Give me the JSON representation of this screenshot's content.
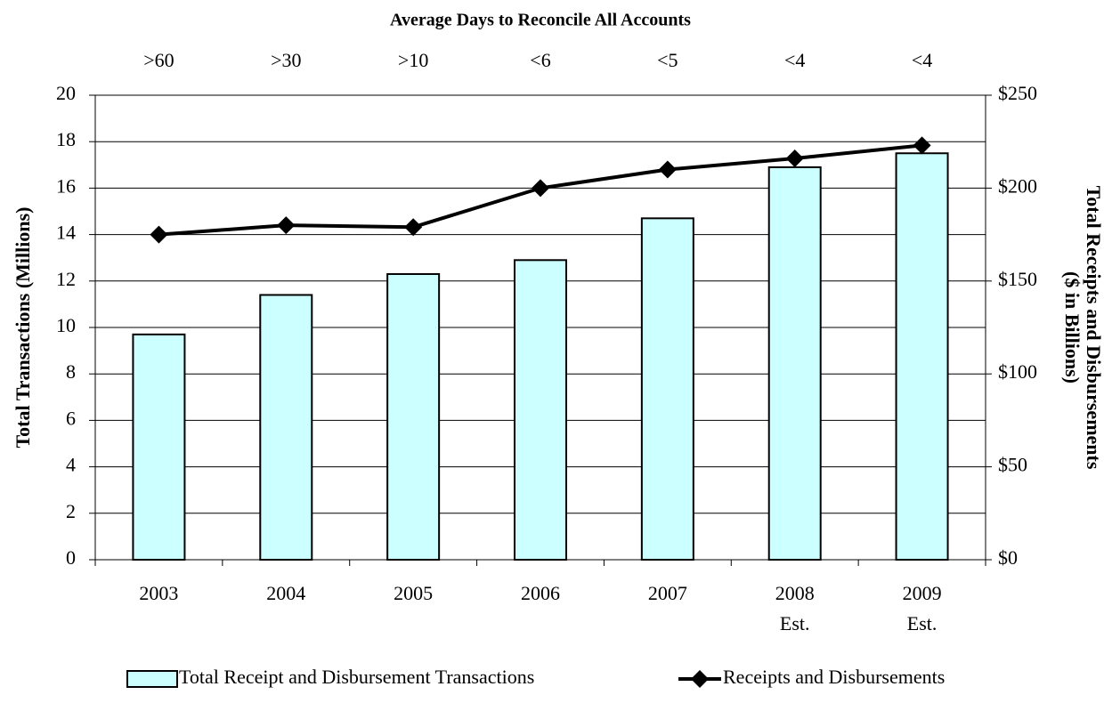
{
  "chart_data": {
    "type": "bar_line",
    "top_title": "Average Days to Reconcile All Accounts",
    "top_labels": [
      ">60",
      ">30",
      ">10",
      "<6",
      "<5",
      "<4",
      "<4"
    ],
    "categories": [
      "2003",
      "2004",
      "2005",
      "2006",
      "2007",
      "2008",
      "2009"
    ],
    "category_notes": [
      null,
      null,
      null,
      null,
      null,
      "Est.",
      "Est."
    ],
    "y_label": "Total Transactions (Millions)",
    "y2_label": [
      "Total Receipts and Disbursements",
      "($ in Billions)"
    ],
    "ylim": [
      0,
      20
    ],
    "yticks": [
      0,
      2,
      4,
      6,
      8,
      10,
      12,
      14,
      16,
      18,
      20
    ],
    "y2lim": [
      0,
      250
    ],
    "y2ticks": [
      {
        "value": 0,
        "label": "$0"
      },
      {
        "value": 50,
        "label": "$50"
      },
      {
        "value": 100,
        "label": "$100"
      },
      {
        "value": 150,
        "label": "$150"
      },
      {
        "value": 200,
        "label": "$200"
      },
      {
        "value": 250,
        "label": "$250"
      }
    ],
    "grid": true,
    "series": [
      {
        "name": "Total Receipt and Disbursement Transactions",
        "type": "bar",
        "color": "#ccffff",
        "values": [
          9.7,
          11.4,
          12.3,
          12.9,
          14.7,
          16.9,
          17.5
        ]
      },
      {
        "name": "Receipts and Disbursements",
        "type": "line",
        "axis": "y2",
        "color": "#000000",
        "values": [
          175,
          180,
          179,
          200,
          210,
          216,
          223
        ]
      }
    ]
  }
}
